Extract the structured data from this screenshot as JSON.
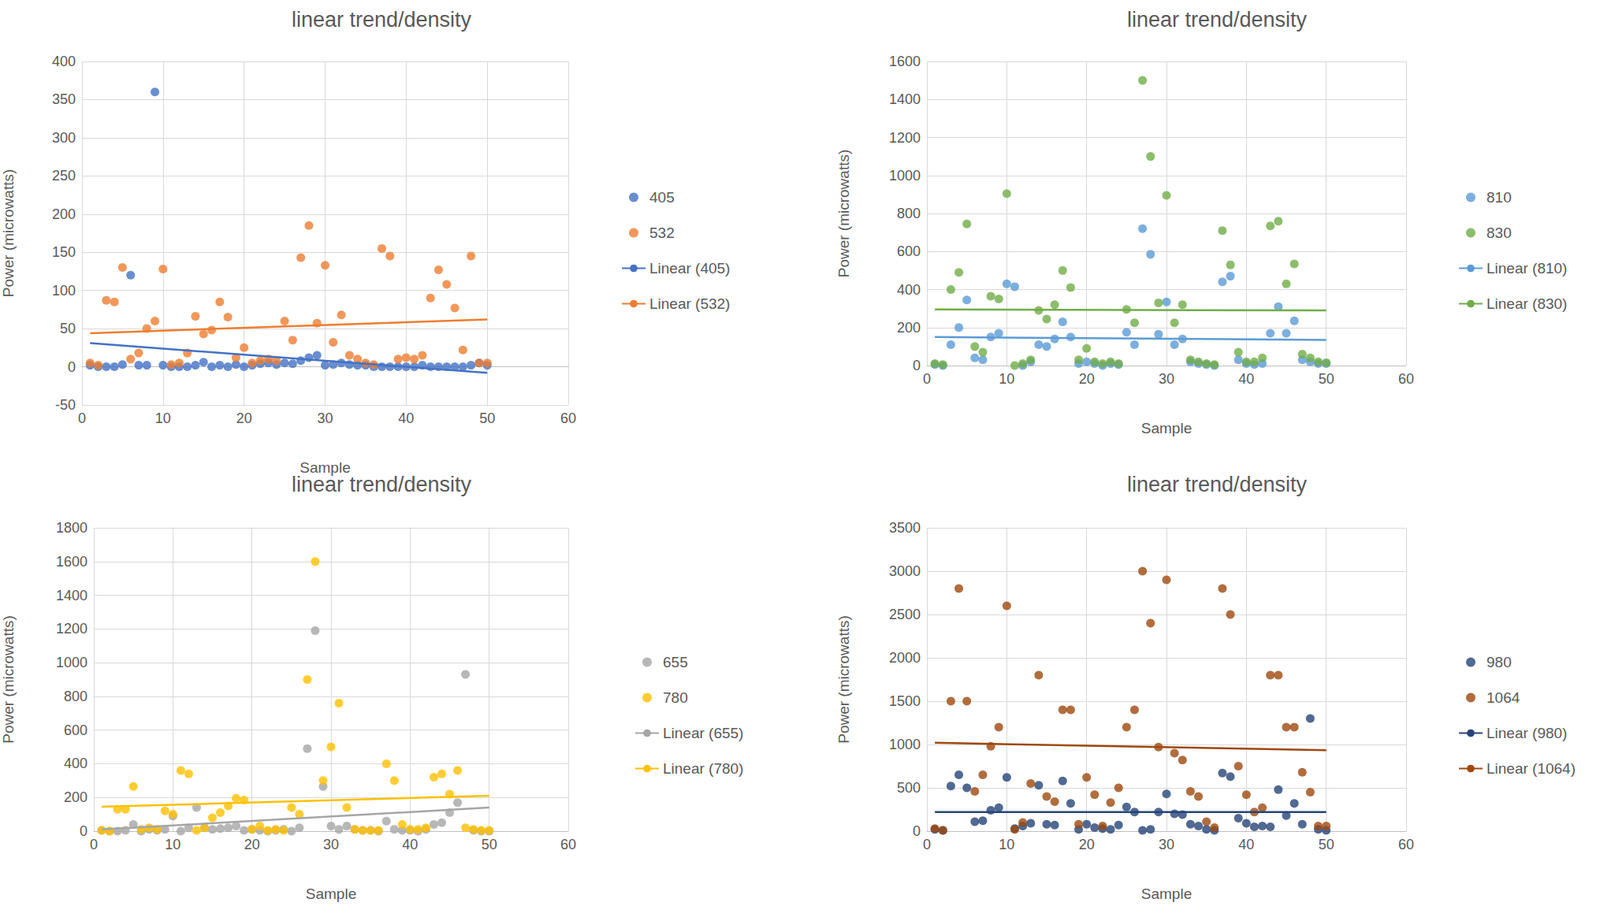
{
  "chart_data": [
    {
      "type": "scatter",
      "title": "linear trend/density",
      "x_label": "Sample",
      "y_label": "Power (microwatts)",
      "xlim": [
        0,
        60
      ],
      "xticks": [
        0,
        10,
        20,
        30,
        40,
        50,
        60
      ],
      "ylim": [
        -50,
        400
      ],
      "yticks": [
        -50,
        0,
        50,
        100,
        150,
        200,
        250,
        300,
        350,
        400
      ],
      "grid": true,
      "legend": "right",
      "x": [
        1,
        2,
        3,
        4,
        5,
        6,
        7,
        8,
        9,
        10,
        11,
        12,
        13,
        14,
        15,
        16,
        17,
        18,
        19,
        20,
        21,
        22,
        23,
        24,
        25,
        26,
        27,
        28,
        29,
        30,
        31,
        32,
        33,
        34,
        35,
        36,
        37,
        38,
        39,
        40,
        41,
        42,
        43,
        44,
        45,
        46,
        47,
        48,
        49,
        50
      ],
      "series": [
        {
          "name": "405",
          "type": "scatter",
          "marker": "circle",
          "color": "#4472c4",
          "values": [
            2,
            0,
            0,
            0,
            3,
            120,
            2,
            2,
            360,
            2,
            0,
            0,
            0,
            2,
            6,
            0,
            2,
            0,
            3,
            0,
            2,
            4,
            5,
            3,
            5,
            4,
            8,
            12,
            15,
            2,
            3,
            5,
            3,
            2,
            2,
            0,
            0,
            0,
            0,
            0,
            0,
            2,
            0,
            0,
            0,
            0,
            0,
            2,
            5,
            2
          ]
        },
        {
          "name": "532",
          "type": "scatter",
          "marker": "circle",
          "color": "#ed7d31",
          "values": [
            5,
            2,
            87,
            85,
            130,
            10,
            18,
            50,
            60,
            128,
            3,
            5,
            18,
            66,
            43,
            48,
            85,
            65,
            12,
            25,
            5,
            8,
            10,
            8,
            60,
            35,
            143,
            185,
            57,
            133,
            32,
            68,
            15,
            10,
            5,
            3,
            155,
            145,
            10,
            12,
            10,
            15,
            90,
            127,
            108,
            77,
            22,
            145,
            5,
            5
          ]
        },
        {
          "name": "Linear (405)",
          "type": "line",
          "line_style": "solid",
          "color": "#4472c4",
          "x": [
            1,
            50
          ],
          "values": [
            31,
            -8
          ]
        },
        {
          "name": "Linear (532)",
          "type": "line",
          "line_style": "solid",
          "color": "#ed7d31",
          "x": [
            1,
            50
          ],
          "values": [
            44,
            62
          ]
        }
      ]
    },
    {
      "type": "scatter",
      "title": "linear trend/density",
      "x_label": "Sample",
      "y_label": "Power (microwatts)",
      "xlim": [
        0,
        60
      ],
      "xticks": [
        0,
        10,
        20,
        30,
        40,
        50,
        60
      ],
      "ylim": [
        0,
        1600
      ],
      "yticks": [
        0,
        200,
        400,
        600,
        800,
        1000,
        1200,
        1400,
        1600
      ],
      "grid": true,
      "legend": "right",
      "x": [
        1,
        2,
        3,
        4,
        5,
        6,
        7,
        8,
        9,
        10,
        11,
        12,
        13,
        14,
        15,
        16,
        17,
        18,
        19,
        20,
        21,
        22,
        23,
        24,
        25,
        26,
        27,
        28,
        29,
        30,
        31,
        32,
        33,
        34,
        35,
        36,
        37,
        38,
        39,
        40,
        41,
        42,
        43,
        44,
        45,
        46,
        47,
        48,
        49,
        50
      ],
      "series": [
        {
          "name": "810",
          "type": "scatter",
          "marker": "circle",
          "color": "#5b9bd5",
          "values": [
            5,
            0,
            110,
            200,
            345,
            40,
            30,
            150,
            170,
            430,
            415,
            0,
            20,
            110,
            100,
            140,
            230,
            150,
            10,
            20,
            10,
            0,
            10,
            5,
            175,
            110,
            720,
            585,
            165,
            335,
            110,
            140,
            20,
            10,
            5,
            0,
            440,
            470,
            30,
            10,
            5,
            10,
            170,
            310,
            170,
            235,
            30,
            20,
            10,
            10
          ]
        },
        {
          "name": "830",
          "type": "scatter",
          "marker": "circle",
          "color": "#70ad47",
          "values": [
            10,
            5,
            400,
            490,
            745,
            100,
            70,
            365,
            350,
            905,
            0,
            10,
            30,
            290,
            245,
            320,
            500,
            410,
            30,
            90,
            20,
            10,
            20,
            10,
            295,
            225,
            1500,
            1100,
            330,
            895,
            225,
            320,
            30,
            20,
            10,
            5,
            710,
            530,
            70,
            20,
            20,
            40,
            735,
            760,
            430,
            535,
            60,
            40,
            20,
            15
          ]
        },
        {
          "name": "Linear (810)",
          "type": "line",
          "line_style": "solid",
          "color": "#5b9bd5",
          "x": [
            1,
            50
          ],
          "values": [
            150,
            135
          ]
        },
        {
          "name": "Linear (830)",
          "type": "line",
          "line_style": "solid",
          "color": "#70ad47",
          "x": [
            1,
            50
          ],
          "values": [
            295,
            290
          ]
        }
      ]
    },
    {
      "type": "scatter",
      "title": "linear trend/density",
      "x_label": "Sample",
      "y_label": "Power (microwatts)",
      "xlim": [
        0,
        60
      ],
      "xticks": [
        0,
        10,
        20,
        30,
        40,
        50,
        60
      ],
      "ylim": [
        0,
        1800
      ],
      "yticks": [
        0,
        200,
        400,
        600,
        800,
        1000,
        1200,
        1400,
        1600,
        1800
      ],
      "grid": true,
      "legend": "right",
      "x": [
        1,
        2,
        3,
        4,
        5,
        6,
        7,
        8,
        9,
        10,
        11,
        12,
        13,
        14,
        15,
        16,
        17,
        18,
        19,
        20,
        21,
        22,
        23,
        24,
        25,
        26,
        27,
        28,
        29,
        30,
        31,
        32,
        33,
        34,
        35,
        36,
        37,
        38,
        39,
        40,
        41,
        42,
        43,
        44,
        45,
        46,
        47,
        48,
        49,
        50
      ],
      "series": [
        {
          "name": "655",
          "type": "scatter",
          "marker": "circle",
          "color": "#a5a5a5",
          "values": [
            5,
            0,
            0,
            5,
            40,
            0,
            10,
            5,
            10,
            90,
            0,
            20,
            140,
            20,
            10,
            15,
            20,
            30,
            5,
            10,
            5,
            0,
            5,
            10,
            0,
            20,
            490,
            1190,
            265,
            30,
            10,
            30,
            10,
            5,
            5,
            0,
            60,
            10,
            5,
            5,
            0,
            10,
            40,
            50,
            110,
            170,
            930,
            5,
            0,
            0
          ]
        },
        {
          "name": "780",
          "type": "scatter",
          "marker": "circle",
          "color": "#ffc000",
          "values": [
            5,
            0,
            130,
            130,
            265,
            10,
            20,
            10,
            120,
            100,
            360,
            340,
            5,
            20,
            80,
            110,
            150,
            195,
            185,
            10,
            30,
            5,
            10,
            5,
            140,
            100,
            900,
            1600,
            300,
            500,
            760,
            140,
            10,
            5,
            5,
            5,
            400,
            300,
            40,
            10,
            10,
            20,
            320,
            340,
            220,
            360,
            20,
            10,
            5,
            5
          ]
        },
        {
          "name": "Linear (655)",
          "type": "line",
          "line_style": "solid",
          "color": "#a5a5a5",
          "x": [
            1,
            50
          ],
          "values": [
            10,
            140
          ]
        },
        {
          "name": "Linear (780)",
          "type": "line",
          "line_style": "solid",
          "color": "#ffc000",
          "x": [
            1,
            50
          ],
          "values": [
            145,
            210
          ]
        }
      ]
    },
    {
      "type": "scatter",
      "title": "linear trend/density",
      "x_label": "Sample",
      "y_label": "Power (microwatts)",
      "xlim": [
        0,
        60
      ],
      "xticks": [
        0,
        10,
        20,
        30,
        40,
        50,
        60
      ],
      "ylim": [
        0,
        3500
      ],
      "yticks": [
        0,
        500,
        1000,
        1500,
        2000,
        2500,
        3000,
        3500
      ],
      "grid": true,
      "legend": "right",
      "x": [
        1,
        2,
        3,
        4,
        5,
        6,
        7,
        8,
        9,
        10,
        11,
        12,
        13,
        14,
        15,
        16,
        17,
        18,
        19,
        20,
        21,
        22,
        23,
        24,
        25,
        26,
        27,
        28,
        29,
        30,
        31,
        32,
        33,
        34,
        35,
        36,
        37,
        38,
        39,
        40,
        41,
        42,
        43,
        44,
        45,
        46,
        47,
        48,
        49,
        50
      ],
      "series": [
        {
          "name": "980",
          "type": "scatter",
          "marker": "circle",
          "color": "#264478",
          "values": [
            20,
            10,
            520,
            650,
            500,
            110,
            120,
            240,
            270,
            620,
            30,
            60,
            90,
            530,
            80,
            70,
            580,
            320,
            20,
            80,
            40,
            30,
            20,
            70,
            280,
            220,
            10,
            20,
            220,
            430,
            200,
            190,
            80,
            60,
            20,
            10,
            670,
            630,
            150,
            90,
            50,
            60,
            50,
            480,
            180,
            320,
            80,
            1300,
            20,
            10
          ]
        },
        {
          "name": "1064",
          "type": "scatter",
          "marker": "circle",
          "color": "#9e480e",
          "values": [
            30,
            10,
            1500,
            2800,
            1500,
            460,
            650,
            980,
            1200,
            2600,
            20,
            100,
            550,
            1800,
            400,
            340,
            1400,
            1400,
            80,
            620,
            420,
            60,
            330,
            500,
            1200,
            1400,
            3000,
            2400,
            970,
            2900,
            900,
            820,
            460,
            400,
            110,
            40,
            2800,
            2500,
            750,
            420,
            220,
            270,
            1800,
            1800,
            1200,
            1200,
            680,
            450,
            60,
            60
          ]
        },
        {
          "name": "Linear (980)",
          "type": "line",
          "line_style": "solid",
          "color": "#264478",
          "x": [
            1,
            50
          ],
          "values": [
            220,
            220
          ]
        },
        {
          "name": "Linear (1064)",
          "type": "line",
          "line_style": "solid",
          "color": "#9e480e",
          "x": [
            1,
            50
          ],
          "values": [
            1020,
            935
          ]
        }
      ]
    }
  ]
}
